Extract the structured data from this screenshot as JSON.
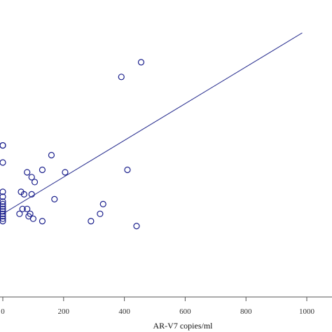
{
  "chart_data": {
    "type": "scatter",
    "title": "",
    "xlabel": "AR-V7 copies/ml",
    "ylabel": "",
    "xlim": [
      0,
      1000
    ],
    "x_ticks": [
      0,
      200,
      400,
      600,
      800,
      1000
    ],
    "x_tick_labels": [
      "0",
      "200",
      "400",
      "600",
      "800",
      "1000"
    ],
    "grid": false,
    "legend": "none",
    "colors": {
      "marker": "#1a1f8c",
      "line": "#2a3090",
      "axis": "#555555"
    },
    "series": [
      {
        "marker": "open-circle",
        "points": [
          [
            455,
            96
          ],
          [
            390,
            90
          ],
          [
            160,
            58
          ],
          [
            130,
            52
          ],
          [
            80,
            51
          ],
          [
            95,
            49
          ],
          [
            205,
            51
          ],
          [
            410,
            52
          ],
          [
            105,
            47
          ],
          [
            60,
            43
          ],
          [
            70,
            42
          ],
          [
            95,
            42
          ],
          [
            170,
            40
          ],
          [
            330,
            38
          ],
          [
            65,
            36
          ],
          [
            80,
            36
          ],
          [
            90,
            34
          ],
          [
            55,
            34
          ],
          [
            100,
            32
          ],
          [
            130,
            31
          ],
          [
            290,
            31
          ],
          [
            320,
            34
          ],
          [
            440,
            29
          ],
          [
            85,
            33
          ],
          [
            0,
            62
          ],
          [
            0,
            62
          ],
          [
            0,
            55
          ],
          [
            0,
            43
          ],
          [
            0,
            41
          ],
          [
            0,
            39
          ],
          [
            0,
            38
          ],
          [
            0,
            37
          ],
          [
            0,
            36
          ],
          [
            0,
            35
          ],
          [
            0,
            34
          ],
          [
            0,
            33
          ],
          [
            0,
            32
          ],
          [
            0,
            31
          ]
        ]
      }
    ],
    "fit_line": {
      "x": [
        0,
        985
      ],
      "y": [
        34,
        108
      ]
    }
  }
}
